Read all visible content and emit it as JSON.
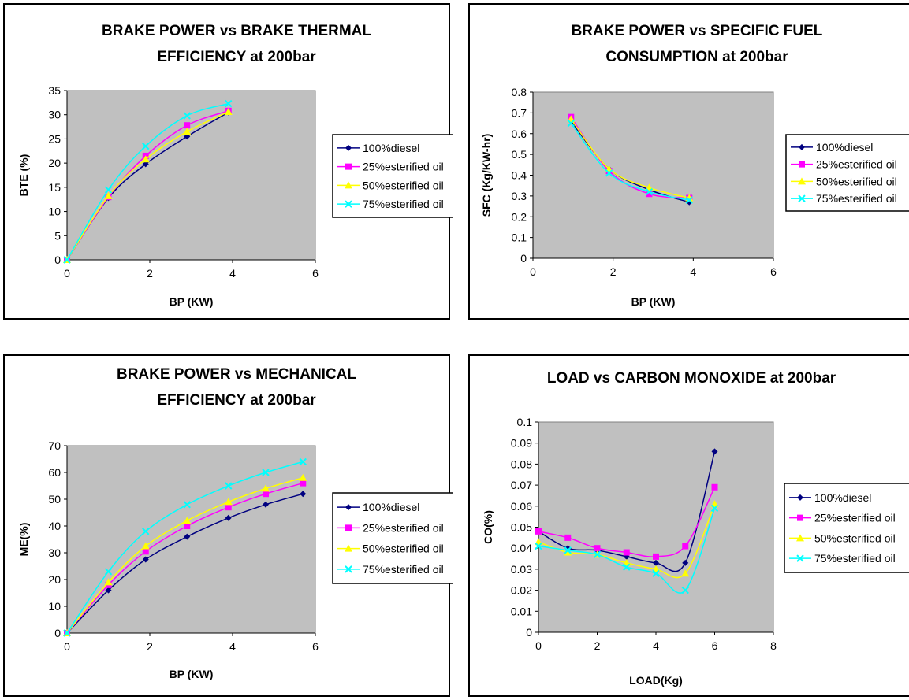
{
  "chart_data": [
    {
      "type": "line",
      "title": "BRAKE POWER vs BRAKE THERMAL EFFICIENCY at 200bar",
      "title_lines": [
        "BRAKE POWER vs BRAKE THERMAL",
        "EFFICIENCY at 200bar"
      ],
      "xlabel": "BP (KW)",
      "ylabel": "BTE (%)",
      "xlim": [
        0,
        6
      ],
      "ylim": [
        0,
        35
      ],
      "xticks": [
        0,
        2,
        4,
        6
      ],
      "yticks": [
        0,
        5,
        10,
        15,
        20,
        25,
        30,
        35
      ],
      "grid": false,
      "legend_position": "right",
      "series": [
        {
          "name": "100%diesel",
          "color": "#000080",
          "marker": "diamond",
          "x": [
            0,
            1.0,
            1.9,
            2.9,
            3.9
          ],
          "y": [
            0,
            12.8,
            19.8,
            25.5,
            30.5
          ]
        },
        {
          "name": "25%esterified oil",
          "color": "#FF00FF",
          "marker": "square",
          "x": [
            0,
            1.0,
            1.9,
            2.9,
            3.9
          ],
          "y": [
            0,
            13.0,
            21.5,
            27.8,
            30.8
          ]
        },
        {
          "name": "50%esterified oil",
          "color": "#FFFF00",
          "marker": "triangle",
          "x": [
            0,
            1.0,
            1.9,
            2.9,
            3.9
          ],
          "y": [
            0,
            13.2,
            20.8,
            26.5,
            30.6
          ]
        },
        {
          "name": "75%esterified oil",
          "color": "#00FFFF",
          "marker": "x",
          "x": [
            0,
            1.0,
            1.9,
            2.9,
            3.9
          ],
          "y": [
            0,
            14.5,
            23.5,
            29.8,
            32.3
          ]
        }
      ]
    },
    {
      "type": "line",
      "title": "BRAKE POWER vs SPECIFIC FUEL CONSUMPTION at 200bar",
      "title_lines": [
        "BRAKE POWER vs SPECIFIC FUEL",
        "CONSUMPTION at 200bar"
      ],
      "xlabel": "BP (KW)",
      "ylabel": "SFC (Kg/KW-hr)",
      "xlim": [
        0,
        6
      ],
      "ylim": [
        0,
        0.8
      ],
      "xticks": [
        0,
        2,
        4,
        6
      ],
      "yticks": [
        0,
        0.1,
        0.2,
        0.3,
        0.4,
        0.5,
        0.6,
        0.7,
        0.8
      ],
      "grid": false,
      "legend_position": "right",
      "series": [
        {
          "name": "100%diesel",
          "color": "#000080",
          "marker": "diamond",
          "x": [
            0.95,
            1.9,
            2.9,
            3.9
          ],
          "y": [
            0.66,
            0.43,
            0.33,
            0.27
          ]
        },
        {
          "name": "25%esterified oil",
          "color": "#FF00FF",
          "marker": "square",
          "x": [
            0.95,
            1.9,
            2.9,
            3.9
          ],
          "y": [
            0.68,
            0.42,
            0.31,
            0.29
          ]
        },
        {
          "name": "50%esterified oil",
          "color": "#FFFF00",
          "marker": "triangle",
          "x": [
            0.95,
            1.9,
            2.9,
            3.9
          ],
          "y": [
            0.67,
            0.43,
            0.34,
            0.29
          ]
        },
        {
          "name": "75%esterified oil",
          "color": "#00FFFF",
          "marker": "x",
          "x": [
            0.95,
            1.9,
            2.9,
            3.9
          ],
          "y": [
            0.65,
            0.41,
            0.32,
            0.28
          ]
        }
      ]
    },
    {
      "type": "line",
      "title": "BRAKE POWER vs MECHANICAL EFFICIENCY at 200bar",
      "title_lines": [
        "BRAKE POWER vs MECHANICAL",
        "EFFICIENCY at 200bar"
      ],
      "xlabel": "BP (KW)",
      "ylabel": "ME(%)",
      "xlim": [
        0,
        6
      ],
      "ylim": [
        0,
        70
      ],
      "xticks": [
        0,
        2,
        4,
        6
      ],
      "yticks": [
        0,
        10,
        20,
        30,
        40,
        50,
        60,
        70
      ],
      "grid": false,
      "legend_position": "right",
      "series": [
        {
          "name": "100%diesel",
          "color": "#000080",
          "marker": "diamond",
          "x": [
            0,
            1.0,
            1.9,
            2.9,
            3.9,
            4.8,
            5.7
          ],
          "y": [
            0,
            16,
            27.5,
            36,
            43,
            48,
            52
          ]
        },
        {
          "name": "25%esterified oil",
          "color": "#FF00FF",
          "marker": "square",
          "x": [
            0,
            1.0,
            1.9,
            2.9,
            3.9,
            4.8,
            5.7
          ],
          "y": [
            0,
            18,
            30.5,
            40,
            47,
            52,
            56
          ]
        },
        {
          "name": "50%esterified oil",
          "color": "#FFFF00",
          "marker": "triangle",
          "x": [
            0,
            1.0,
            1.9,
            2.9,
            3.9,
            4.8,
            5.7
          ],
          "y": [
            0,
            19,
            32.5,
            42,
            49,
            54,
            58
          ]
        },
        {
          "name": "75%esterified oil",
          "color": "#00FFFF",
          "marker": "x",
          "x": [
            0,
            1.0,
            1.9,
            2.9,
            3.9,
            4.8,
            5.7
          ],
          "y": [
            0,
            23,
            38,
            48,
            55,
            60,
            64
          ]
        }
      ]
    },
    {
      "type": "line",
      "title": "LOAD vs CARBON MONOXIDE at 200bar",
      "title_lines": [
        "LOAD vs CARBON MONOXIDE at 200bar"
      ],
      "xlabel": "LOAD(Kg)",
      "ylabel": "CO(%)",
      "xlim": [
        0,
        8
      ],
      "ylim": [
        0,
        0.1
      ],
      "xticks": [
        0,
        2,
        4,
        6,
        8
      ],
      "yticks": [
        0,
        0.01,
        0.02,
        0.03,
        0.04,
        0.05,
        0.06,
        0.07,
        0.08,
        0.09,
        0.1
      ],
      "grid": false,
      "legend_position": "right",
      "series": [
        {
          "name": "100%diesel",
          "color": "#000080",
          "marker": "diamond",
          "x": [
            0,
            1,
            2,
            3,
            4,
            5,
            6
          ],
          "y": [
            0.048,
            0.04,
            0.039,
            0.036,
            0.033,
            0.033,
            0.086
          ]
        },
        {
          "name": "25%esterified oil",
          "color": "#FF00FF",
          "marker": "square",
          "x": [
            0,
            1,
            2,
            3,
            4,
            5,
            6
          ],
          "y": [
            0.048,
            0.045,
            0.04,
            0.038,
            0.036,
            0.041,
            0.069
          ]
        },
        {
          "name": "50%esterified oil",
          "color": "#FFFF00",
          "marker": "triangle",
          "x": [
            0,
            1,
            2,
            3,
            4,
            5,
            6
          ],
          "y": [
            0.043,
            0.038,
            0.037,
            0.033,
            0.03,
            0.028,
            0.061
          ]
        },
        {
          "name": "75%esterified oil",
          "color": "#00FFFF",
          "marker": "x",
          "x": [
            0,
            1,
            2,
            3,
            4,
            5,
            6
          ],
          "y": [
            0.041,
            0.039,
            0.037,
            0.031,
            0.028,
            0.02,
            0.059
          ]
        }
      ]
    }
  ]
}
